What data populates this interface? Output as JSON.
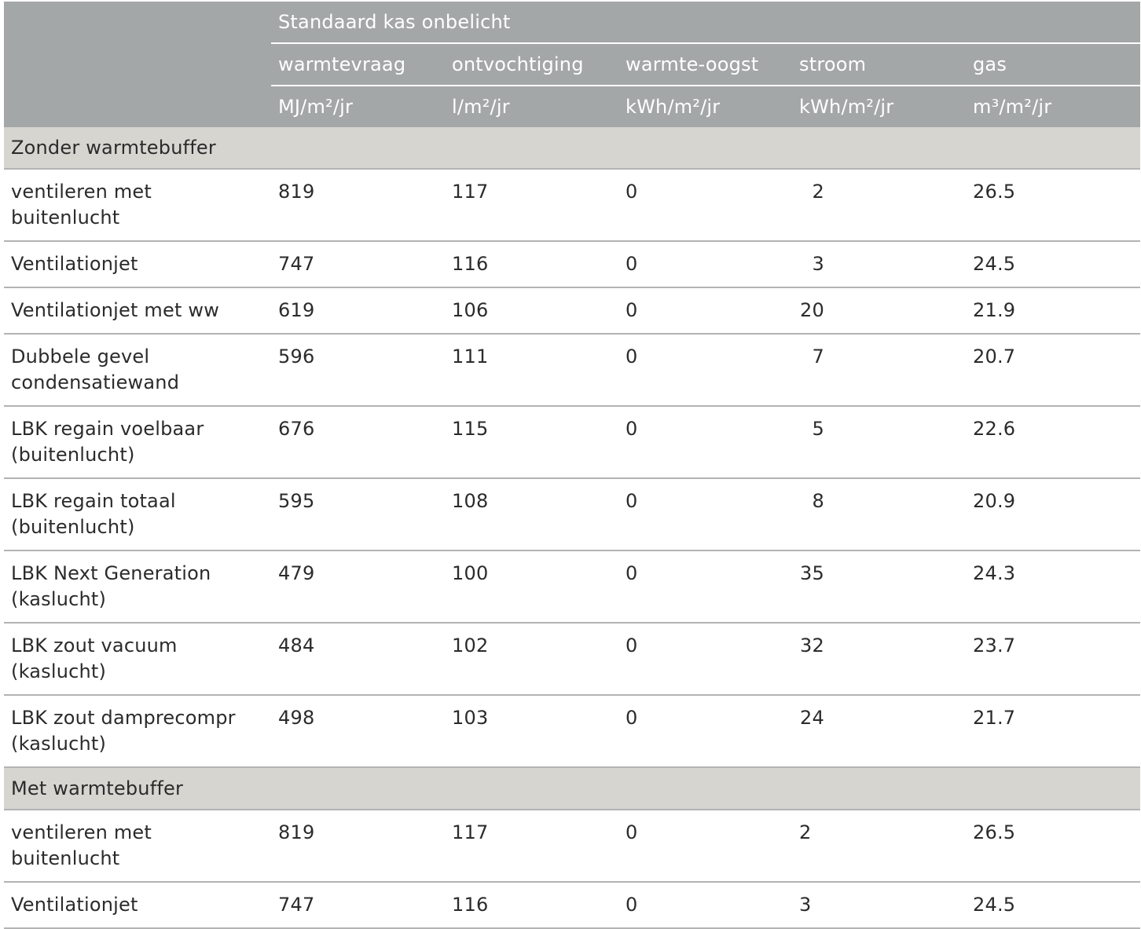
{
  "header": {
    "group_title": "Standaard kas onbelicht",
    "columns": [
      {
        "name": "warmtevraag",
        "unit": "MJ/m²/jr"
      },
      {
        "name": "ontvochtiging",
        "unit": "l/m²/jr"
      },
      {
        "name": "warmte-oogst",
        "unit": "kWh/m²/jr"
      },
      {
        "name": "stroom",
        "unit": "kWh/m²/jr"
      },
      {
        "name": "gas",
        "unit": "m³/m²/jr"
      }
    ]
  },
  "sections": [
    {
      "title": "Zonder warmtebuffer",
      "rows": [
        {
          "label": "ventileren met buitenlucht",
          "warmtevraag": "819",
          "ontvochtiging": "117",
          "warmte_oogst": "0",
          "stroom": "2",
          "gas": "26.5"
        },
        {
          "label": "Ventilationjet",
          "warmtevraag": "747",
          "ontvochtiging": "116",
          "warmte_oogst": "0",
          "stroom": "3",
          "gas": "24.5"
        },
        {
          "label": "Ventilationjet met ww",
          "warmtevraag": "619",
          "ontvochtiging": "106",
          "warmte_oogst": "0",
          "stroom": "20",
          "gas": "21.9"
        },
        {
          "label": "Dubbele gevel condensatiewand",
          "warmtevraag": "596",
          "ontvochtiging": "111",
          "warmte_oogst": "0",
          "stroom": "7",
          "gas": "20.7"
        },
        {
          "label": "LBK regain voelbaar (buitenlucht)",
          "warmtevraag": "676",
          "ontvochtiging": "115",
          "warmte_oogst": "0",
          "stroom": "5",
          "gas": "22.6"
        },
        {
          "label": "LBK regain totaal (buitenlucht)",
          "warmtevraag": "595",
          "ontvochtiging": "108",
          "warmte_oogst": "0",
          "stroom": "8",
          "gas": "20.9"
        },
        {
          "label": "LBK Next Generation (kaslucht)",
          "warmtevraag": "479",
          "ontvochtiging": "100",
          "warmte_oogst": "0",
          "stroom": "35",
          "gas": "24.3"
        },
        {
          "label": "LBK zout vacuum (kaslucht)",
          "warmtevraag": "484",
          "ontvochtiging": "102",
          "warmte_oogst": "0",
          "stroom": "32",
          "gas": "23.7"
        },
        {
          "label": "LBK zout damprecompr (kaslucht)",
          "warmtevraag": "498",
          "ontvochtiging": "103",
          "warmte_oogst": "0",
          "stroom": "24",
          "gas": "21.7"
        }
      ]
    },
    {
      "title": "Met warmtebuffer",
      "rows": [
        {
          "label": "ventileren met buitenlucht",
          "warmtevraag": "819",
          "ontvochtiging": "117",
          "warmte_oogst": "0",
          "stroom": "2",
          "gas": "26.5"
        },
        {
          "label": "Ventilationjet",
          "warmtevraag": "747",
          "ontvochtiging": "116",
          "warmte_oogst": "0",
          "stroom": "3",
          "gas": "24.5"
        }
      ]
    }
  ]
}
